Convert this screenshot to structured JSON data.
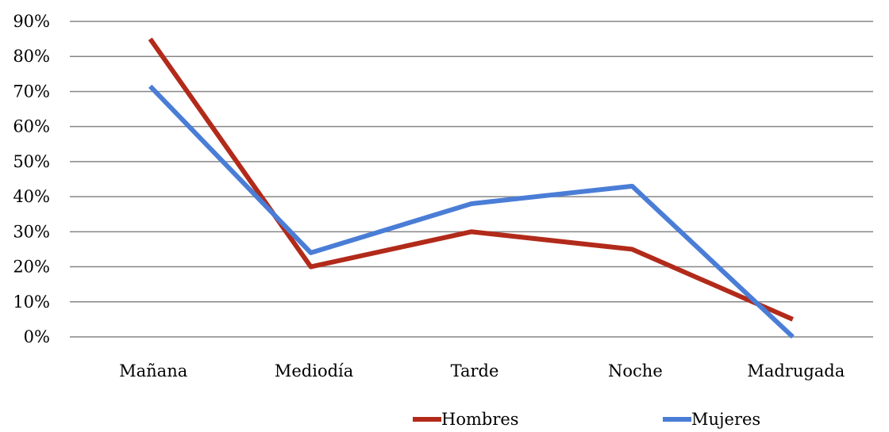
{
  "chart_data": {
    "type": "line",
    "title": "",
    "xlabel": "",
    "ylabel": "",
    "categories": [
      "Mañana",
      "Mediodía",
      "Tarde",
      "Noche",
      "Madrugada"
    ],
    "y_ticks": [
      "0%",
      "10%",
      "20%",
      "30%",
      "40%",
      "50%",
      "60%",
      "70%",
      "80%",
      "90%"
    ],
    "ylim": [
      0,
      90
    ],
    "grid": true,
    "legend_position": "bottom",
    "series": [
      {
        "name": "Hombres",
        "color": "#B22A1A",
        "values": [
          85,
          20,
          30,
          25,
          5
        ]
      },
      {
        "name": "Mujeres",
        "color": "#4A7DD6",
        "values": [
          71.5,
          24,
          38,
          43,
          0
        ]
      }
    ]
  }
}
